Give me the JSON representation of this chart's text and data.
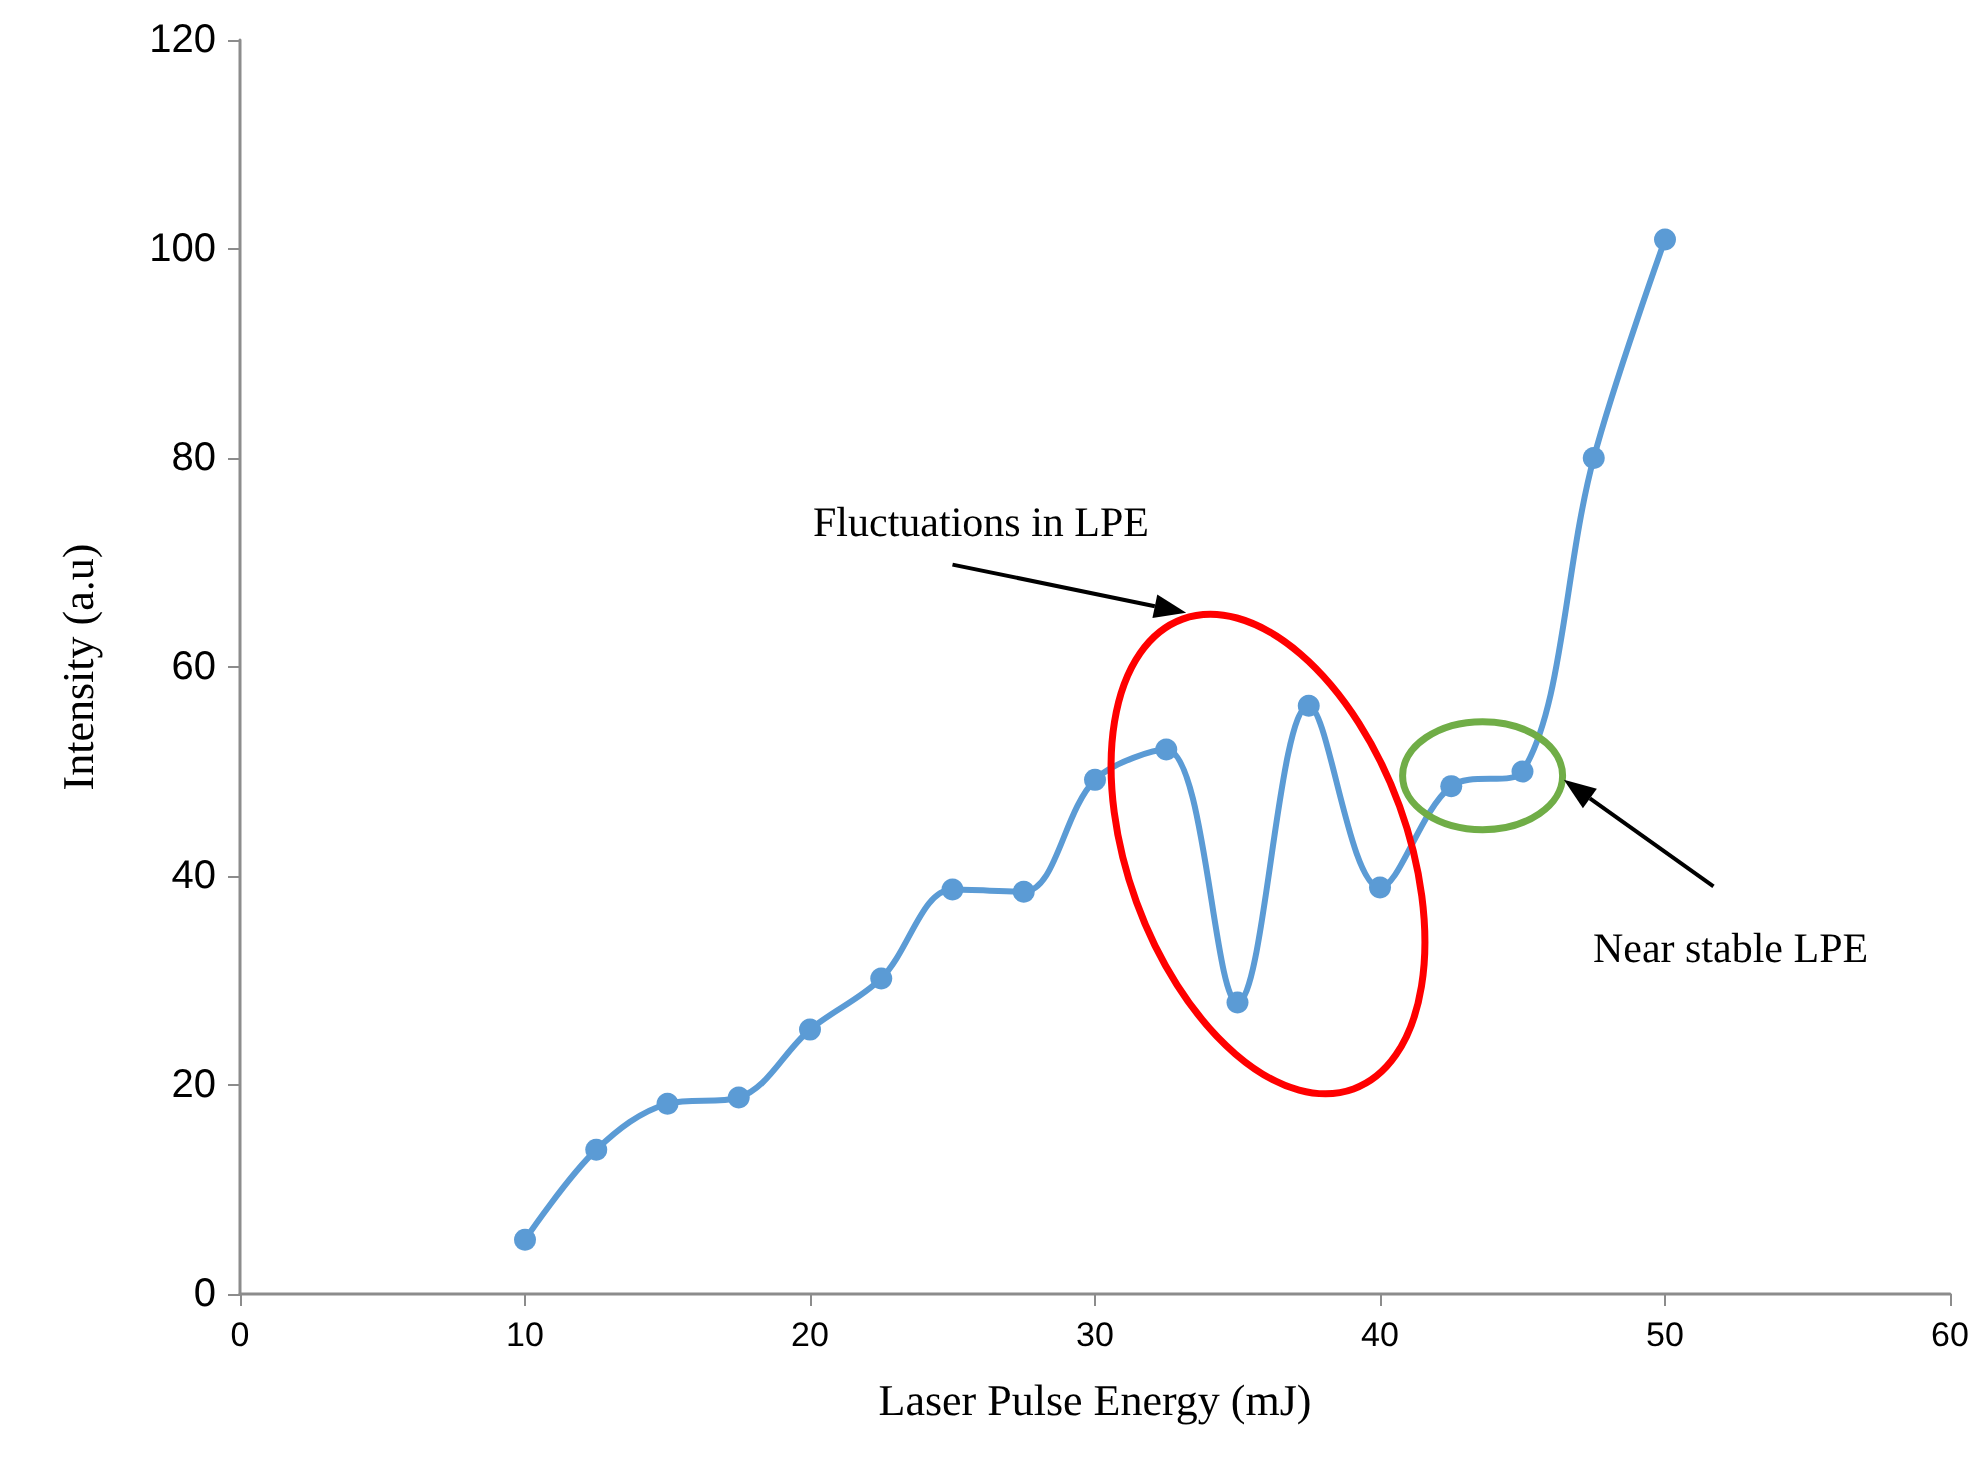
{
  "chart_data": {
    "type": "line",
    "xlabel": "Laser Pulse Energy (mJ)",
    "ylabel": "Intensity (a.u)",
    "x": [
      10,
      12.5,
      15,
      17.5,
      20,
      22.5,
      25,
      27.5,
      30,
      32.5,
      35,
      37.5,
      40,
      42.5,
      45,
      47.5,
      50
    ],
    "series": [
      {
        "color": "#5b9bd5",
        "values": [
          5.2,
          13.8,
          18.2,
          18.8,
          25.3,
          30.2,
          38.7,
          38.5,
          49.2,
          52.1,
          27.9,
          56.3,
          38.9,
          48.6,
          50.0,
          80.0,
          100.9
        ]
      }
    ],
    "xlim": [
      0,
      60
    ],
    "xticks": [
      0,
      10,
      20,
      30,
      40,
      50,
      60
    ],
    "ylim": [
      0,
      120
    ],
    "yticks": [
      0,
      20,
      40,
      60,
      80,
      100,
      120
    ],
    "grid": false,
    "marker": "circle",
    "line_style": "solid",
    "annotations": [
      "Fluctuations in LPE",
      "Near stable LPE"
    ]
  }
}
